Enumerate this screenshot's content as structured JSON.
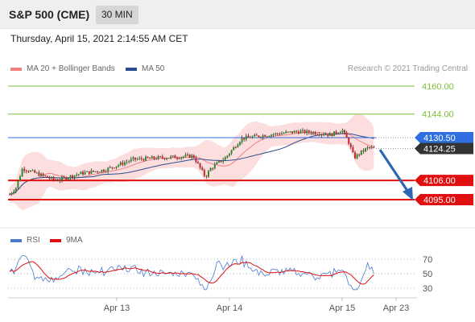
{
  "header": {
    "title": "S&P 500 (CME)",
    "interval": "30 MIN"
  },
  "datetime": "Thursday, April 15, 2021 2:14:55 AM CET",
  "legend_main": [
    {
      "label": "MA 20 + Bollinger Bands",
      "color": "#f08080"
    },
    {
      "label": "MA 50",
      "color": "#2a4d8f"
    }
  ],
  "credit": "Research © 2021 Trading Central",
  "legend_rsi": [
    {
      "label": "RSI",
      "color": "#4a7bd0"
    },
    {
      "label": "9MA",
      "color": "#e01010"
    }
  ],
  "chart_data": {
    "type": "candlestick",
    "y_range": [
      4085,
      4168
    ],
    "levels": [
      {
        "value": 4160.0,
        "label": "4160.00",
        "color": "#7cbf3a",
        "kind": "resistance"
      },
      {
        "value": 4144.0,
        "label": "4144.00",
        "color": "#7cbf3a",
        "kind": "resistance"
      },
      {
        "value": 4130.5,
        "label": "4130.50",
        "color": "#2f6fe0",
        "kind": "pivot"
      },
      {
        "value": 4106.0,
        "label": "4106.00",
        "color": "#e01010",
        "kind": "support"
      },
      {
        "value": 4095.0,
        "label": "4095.00",
        "color": "#e01010",
        "kind": "support"
      }
    ],
    "last_price": {
      "value": 4124.25,
      "label": "4124.25",
      "color": "#333333"
    },
    "x_labels": [
      "Apr 13",
      "Apr 14",
      "Apr 15",
      "Apr 23"
    ],
    "rsi": {
      "levels": [
        70,
        50,
        30
      ],
      "level_labels": [
        "70",
        "50",
        "30"
      ]
    }
  }
}
